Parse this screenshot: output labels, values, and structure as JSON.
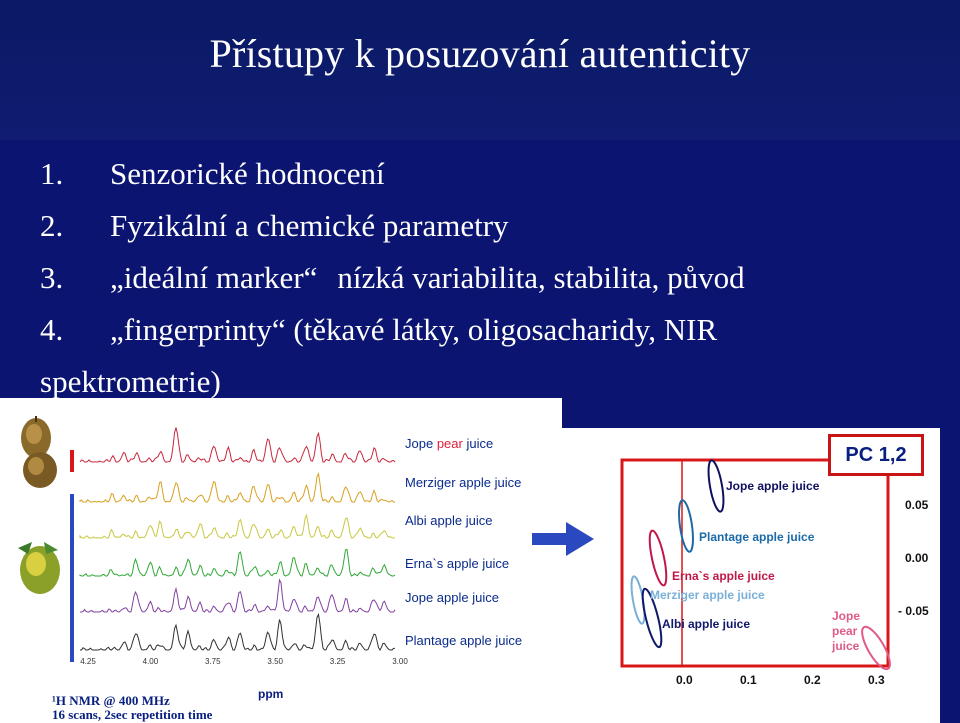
{
  "slide": {
    "title": "Přístupy k posuzování autenticity",
    "bullets": [
      {
        "num": "1.",
        "text": "Senzorické hodnocení"
      },
      {
        "num": "2.",
        "text": "Fyzikální a chemické parametry"
      },
      {
        "num": "3.",
        "text_a": "„ideální marker“",
        "text_b": "nízká variabilita, stabilita, původ"
      },
      {
        "num": "4.",
        "text": "„fingerprinty“ (těkavé látky, oligosacharidy, NIR",
        "text_line2": "spektrometrie)"
      }
    ]
  },
  "nmr": {
    "traces": [
      {
        "label_pre": "Jope ",
        "label_mid": "pear",
        "label_post": " juice",
        "color": "#c8283c"
      },
      {
        "label": "Merziger apple juice",
        "color": "#d8a020"
      },
      {
        "label": "Albi apple juice",
        "color": "#c8c840"
      },
      {
        "label": "Erna`s  apple juice",
        "color": "#30a838"
      },
      {
        "label": "Jope apple juice",
        "color": "#8040a0"
      },
      {
        "label": "Plantage apple juice",
        "color": "#303030"
      }
    ],
    "ppm_ticks": [
      "4.25",
      "4.00",
      "3.75",
      "3.50",
      "3.25",
      "3.00"
    ],
    "xlabel": "ppm",
    "caption_line1": "¹H NMR @ 400 MHz",
    "caption_line2": "16 scans, 2sec repetition time"
  },
  "pca": {
    "badge": "PC  1,2",
    "groups": [
      {
        "label": "Jope apple juice",
        "color": "#101060"
      },
      {
        "label": "Plantage apple juice",
        "color": "#1a6aa8"
      },
      {
        "label": "Erna`s  apple juice",
        "color": "#c01848"
      },
      {
        "label": "Merziger apple juice",
        "color": "#7ab0d8"
      },
      {
        "label": "Albi apple juice",
        "color": "#10186a"
      },
      {
        "label": "Jope pear juice",
        "color": "#e05a8a"
      }
    ],
    "x_ticks": [
      "0.0",
      "0.1",
      "0.2",
      "0.3"
    ],
    "y_ticks": [
      "0.05",
      "0.00",
      "- 0.05"
    ]
  },
  "colors": {
    "slide_bg": "#0b1470",
    "frame_red": "#d81818",
    "arrow_blue": "#2a48c0"
  }
}
